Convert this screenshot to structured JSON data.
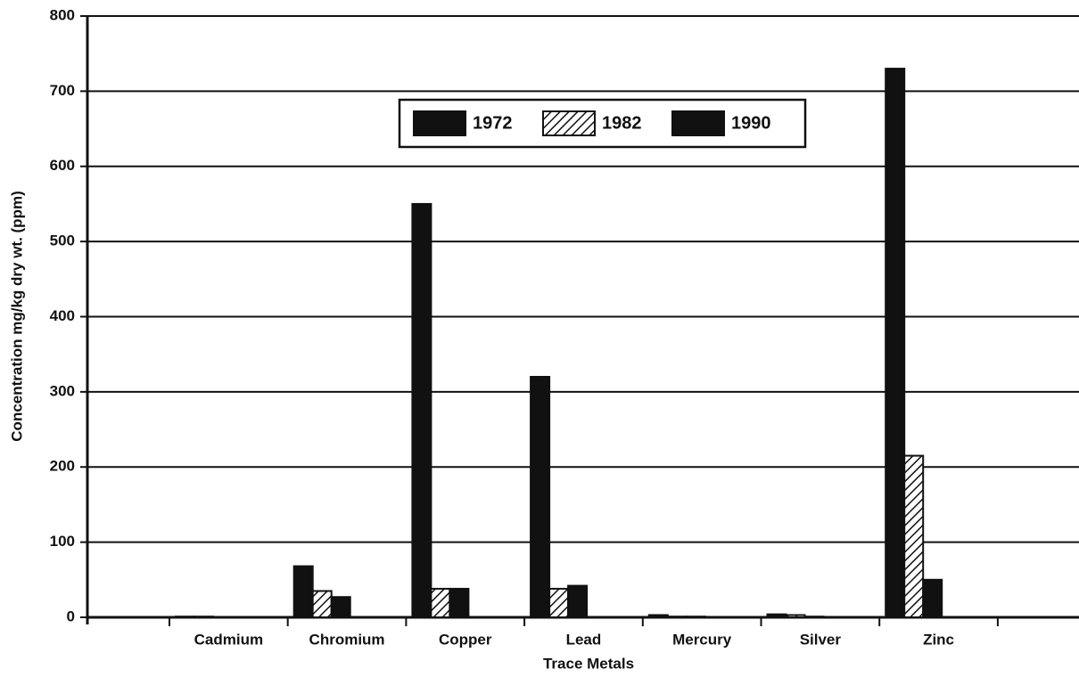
{
  "chart_data": {
    "type": "bar",
    "xlabel": "Trace Metals",
    "ylabel": "Concentration mg/kg dry wt. (ppm)",
    "categories": [
      "Cadmium",
      "Chromium",
      "Copper",
      "Lead",
      "Mercury",
      "Silver",
      "Zinc"
    ],
    "series": [
      {
        "name": "1972",
        "color": "#111111",
        "values": [
          1,
          68,
          550,
          320,
          3,
          4,
          730
        ]
      },
      {
        "name": "1982",
        "color": "#111111",
        "hatch": true,
        "values": [
          1,
          35,
          38,
          38,
          1,
          3,
          215
        ]
      },
      {
        "name": "1990",
        "color": "#111111",
        "values": [
          0,
          27,
          38,
          42,
          1,
          1,
          50
        ]
      }
    ],
    "ylim": [
      0,
      800
    ],
    "yticks": [
      0,
      100,
      200,
      300,
      400,
      500,
      600,
      700,
      800
    ],
    "grid": true
  }
}
